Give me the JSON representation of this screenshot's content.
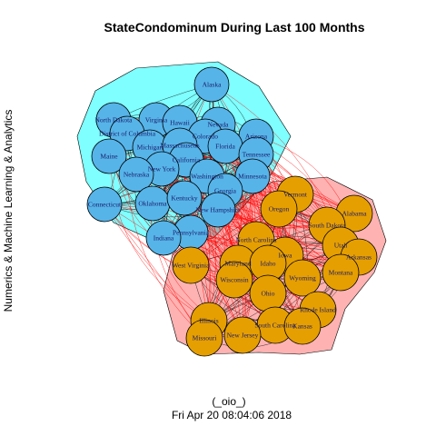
{
  "title": "StateCondominum During Last 100 Months",
  "ylabel": "Numerics & Machine Learning & Analytics",
  "footer": {
    "line1": "(_oio_)",
    "line2": "Fri Apr 20 08:04:06 2018"
  },
  "colors": {
    "group1_fill": "#56b4e9",
    "group2_fill": "#e69f00",
    "group1_hull": "#00ffff",
    "group2_hull": "#ff0000",
    "intra_edge": "#000000",
    "inter_edge": "#ff0000",
    "node_stroke": "#000000"
  },
  "groups": [
    {
      "name": "group1",
      "nodes": [
        "Alaska",
        "North Dakota",
        "Virginia",
        "Hawaii",
        "Nevada",
        "District of Columbia",
        "Colorado",
        "Arizona",
        "Michigan",
        "Massachusetts",
        "Florida",
        "Maine",
        "Tennessee",
        "California",
        "New York",
        "Nebraska",
        "Washington",
        "Minnesota",
        "Georgia",
        "Connecticut",
        "Oklahoma",
        "Kentucky",
        "New Hampshire",
        "Pennsylvania",
        "Indiana"
      ]
    },
    {
      "name": "group2",
      "nodes": [
        "Vermont",
        "Alabama",
        "Oregon",
        "South Dakota",
        "Utah",
        "North Carolina",
        "Iowa",
        "Arkansas",
        "West Virginia",
        "Maryland",
        "Idaho",
        "Montana",
        "Wisconsin",
        "Wyoming",
        "Ohio",
        "Rhode Island",
        "Illinois",
        "South Carolina",
        "Kansas",
        "Missouri",
        "New Jersey"
      ]
    }
  ]
}
